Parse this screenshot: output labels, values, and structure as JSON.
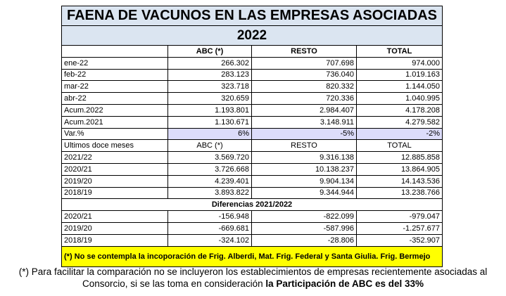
{
  "table": {
    "title": "FAENA DE VACUNOS EN LAS EMPRESAS ASOCIADAS",
    "year": "2022",
    "header": [
      "ABC (*)",
      "RESTO",
      "TOTAL"
    ],
    "rows": [
      [
        "ene-22",
        "266.302",
        "707.698",
        "974.000"
      ],
      [
        "feb-22",
        "283.123",
        "736.040",
        "1.019.163"
      ],
      [
        "mar-22",
        "323.718",
        "820.332",
        "1.144.050"
      ],
      [
        "abr-22",
        "320.659",
        "720.336",
        "1.040.995"
      ],
      [
        "Acum.2022",
        "1.193.801",
        "2.984.407",
        "4.178.208"
      ],
      [
        "Acum.2021",
        "1.130.671",
        "3.148.911",
        "4.279.582"
      ],
      [
        "Var.%",
        "6%",
        "-5%",
        "-2%"
      ]
    ],
    "section2": {
      "header": [
        "Ultimos doce meses",
        "ABC (*)",
        "RESTO",
        "TOTAL"
      ],
      "rows": [
        [
          "2021/22",
          "3.569.720",
          "9.316.138",
          "12.885.858"
        ],
        [
          "2020/21",
          "3.726.668",
          "10.138.237",
          "13.864.905"
        ],
        [
          "2019/20",
          "4.239.401",
          "9.904.134",
          "14.143.536"
        ],
        [
          "2018/19",
          "3.893.822",
          "9.344.944",
          "13.238.766"
        ]
      ]
    },
    "section3": {
      "title": "Diferencias 2021/2022",
      "rows": [
        [
          "2020/21",
          "-156.948",
          "-822.099",
          "-979.047"
        ],
        [
          "2019/20",
          "-669.681",
          "-587.996",
          "-1.257.677"
        ],
        [
          "2018/19",
          "-324.102",
          "-28.806",
          "-352.907"
        ]
      ]
    },
    "note": "(*) No se contempla la incoporación de Frig. Alberdi, Mat. Frig. Federal y Santa Giulia. Frig. Bermejo"
  },
  "footnote": {
    "text": "(*) Para facilitar la comparación no se incluyeron los establecimientos de empresas recientemente asociadas al Consorcio, si se las toma en consideración",
    "emphasis": "la Participación de ABC es del 33%"
  }
}
